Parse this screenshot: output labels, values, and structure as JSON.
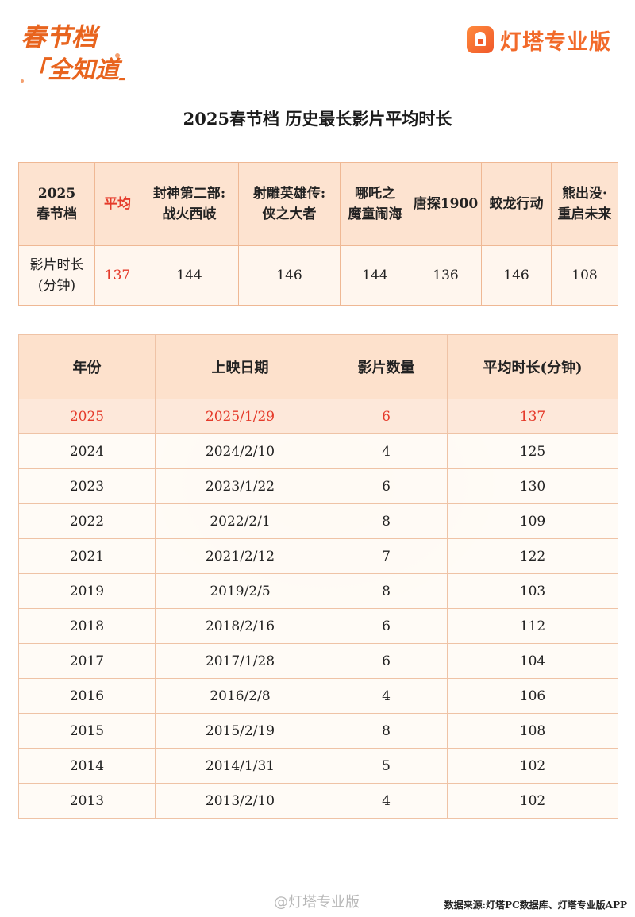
{
  "header": {
    "logo_text": "春节档「全知道」",
    "brand_name": "灯塔专业版",
    "title": "2025春节档 历史最长影片平均时长"
  },
  "summary": {
    "corner_line1": "2025",
    "corner_line2": "春节档",
    "columns": [
      {
        "line1": "平均",
        "line2": "",
        "highlight": true
      },
      {
        "line1": "封神第二部:",
        "line2": "战火西岐"
      },
      {
        "line1": "射雕英雄传:",
        "line2": "侠之大者"
      },
      {
        "line1": "哪吒之",
        "line2": "魔童闹海"
      },
      {
        "line1": "唐探1900",
        "line2": ""
      },
      {
        "line1": "蛟龙行动",
        "line2": ""
      },
      {
        "line1": "熊出没·",
        "line2": "重启未来"
      }
    ],
    "row_label_line1": "影片时长",
    "row_label_line2": "(分钟)",
    "values": [
      "137",
      "144",
      "146",
      "144",
      "136",
      "146",
      "108"
    ]
  },
  "history": {
    "headers": [
      "年份",
      "上映日期",
      "影片数量",
      "平均时长(分钟)"
    ],
    "rows": [
      {
        "year": "2025",
        "date": "2025/1/29",
        "count": "6",
        "avg": "137"
      },
      {
        "year": "2024",
        "date": "2024/2/10",
        "count": "4",
        "avg": "125"
      },
      {
        "year": "2023",
        "date": "2023/1/22",
        "count": "6",
        "avg": "130"
      },
      {
        "year": "2022",
        "date": "2022/2/1",
        "count": "8",
        "avg": "109"
      },
      {
        "year": "2021",
        "date": "2021/2/12",
        "count": "7",
        "avg": "122"
      },
      {
        "year": "2019",
        "date": "2019/2/5",
        "count": "8",
        "avg": "103"
      },
      {
        "year": "2018",
        "date": "2018/2/16",
        "count": "6",
        "avg": "112"
      },
      {
        "year": "2017",
        "date": "2017/1/28",
        "count": "6",
        "avg": "104"
      },
      {
        "year": "2016",
        "date": "2016/2/8",
        "count": "4",
        "avg": "106"
      },
      {
        "year": "2015",
        "date": "2015/2/19",
        "count": "8",
        "avg": "108"
      },
      {
        "year": "2014",
        "date": "2014/1/31",
        "count": "5",
        "avg": "102"
      },
      {
        "year": "2013",
        "date": "2013/2/10",
        "count": "4",
        "avg": "102"
      }
    ]
  },
  "footer": {
    "watermark": "@灯塔专业版",
    "source": "数据来源:灯塔PC数据库、灯塔专业版APP"
  },
  "colors": {
    "accent": "#f26a2a",
    "highlight_text": "#e53a2a",
    "header_fill": "#fde1cc"
  }
}
